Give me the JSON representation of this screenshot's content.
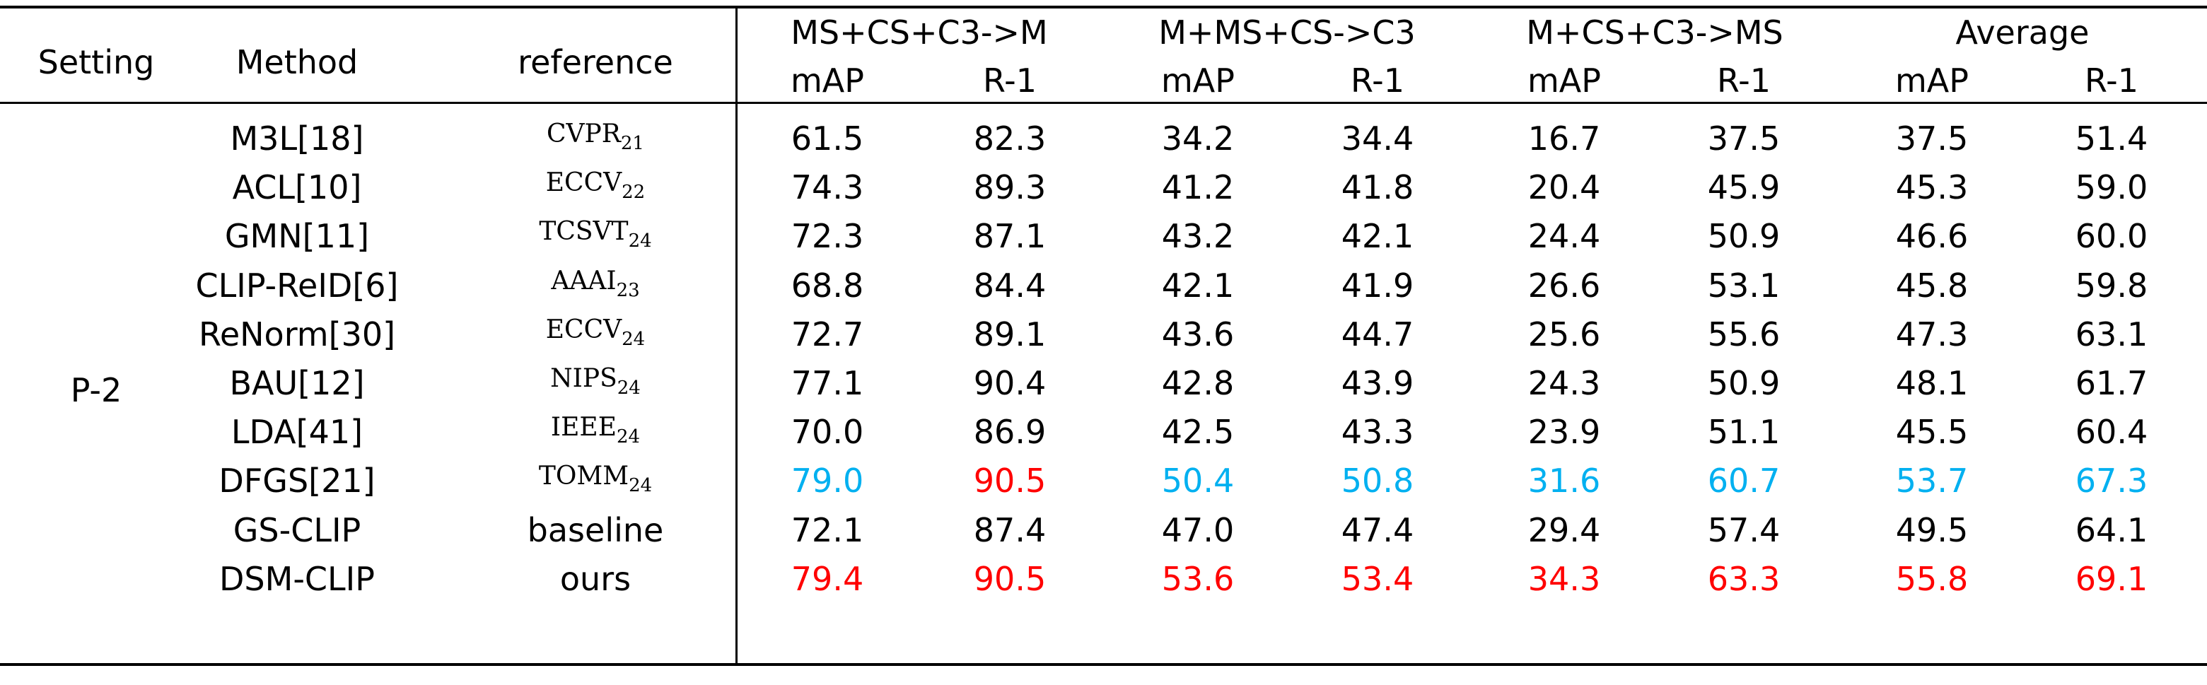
{
  "headers": {
    "setting": "Setting",
    "method": "Method",
    "reference": "reference",
    "groups": [
      "MS+CS+C3->M",
      "M+MS+CS->C3",
      "M+CS+C3->MS",
      "Average"
    ],
    "metrics": [
      "mAP",
      "R-1",
      "mAP",
      "R-1",
      "mAP",
      "R-1",
      "mAP",
      "R-1"
    ]
  },
  "setting_value": "P-2",
  "rows": [
    {
      "method": "M3L[18]",
      "ref": "CVPR",
      "ref_sub": "21",
      "values": [
        "61.5",
        "82.3",
        "34.2",
        "34.4",
        "16.7",
        "37.5",
        "37.5",
        "51.4"
      ],
      "colors": [
        "",
        "",
        "",
        "",
        "",
        "",
        "",
        ""
      ]
    },
    {
      "method": "ACL[10]",
      "ref": "ECCV",
      "ref_sub": "22",
      "values": [
        "74.3",
        "89.3",
        "41.2",
        "41.8",
        "20.4",
        "45.9",
        "45.3",
        "59.0"
      ],
      "colors": [
        "",
        "",
        "",
        "",
        "",
        "",
        "",
        ""
      ]
    },
    {
      "method": "GMN[11]",
      "ref": "TCSVT",
      "ref_sub": "24",
      "values": [
        "72.3",
        "87.1",
        "43.2",
        "42.1",
        "24.4",
        "50.9",
        "46.6",
        "60.0"
      ],
      "colors": [
        "",
        "",
        "",
        "",
        "",
        "",
        "",
        ""
      ]
    },
    {
      "method": "CLIP-ReID[6]",
      "ref": "AAAI",
      "ref_sub": "23",
      "values": [
        "68.8",
        "84.4",
        "42.1",
        "41.9",
        "26.6",
        "53.1",
        "45.8",
        "59.8"
      ],
      "colors": [
        "",
        "",
        "",
        "",
        "",
        "",
        "",
        ""
      ]
    },
    {
      "method": "ReNorm[30]",
      "ref": "ECCV",
      "ref_sub": "24",
      "values": [
        "72.7",
        "89.1",
        "43.6",
        "44.7",
        "25.6",
        "55.6",
        "47.3",
        "63.1"
      ],
      "colors": [
        "",
        "",
        "",
        "",
        "",
        "",
        "",
        ""
      ]
    },
    {
      "method": "BAU[12]",
      "ref": "NIPS",
      "ref_sub": "24",
      "values": [
        "77.1",
        "90.4",
        "42.8",
        "43.9",
        "24.3",
        "50.9",
        "48.1",
        "61.7"
      ],
      "colors": [
        "",
        "",
        "",
        "",
        "",
        "",
        "",
        ""
      ]
    },
    {
      "method": "LDA[41]",
      "ref": "IEEE",
      "ref_sub": "24",
      "values": [
        "70.0",
        "86.9",
        "42.5",
        "43.3",
        "23.9",
        "51.1",
        "45.5",
        "60.4"
      ],
      "colors": [
        "",
        "",
        "",
        "",
        "",
        "",
        "",
        ""
      ]
    },
    {
      "method": "DFGS[21]",
      "ref": "TOMM",
      "ref_sub": "24",
      "values": [
        "79.0",
        "90.5",
        "50.4",
        "50.8",
        "31.6",
        "60.7",
        "53.7",
        "67.3"
      ],
      "colors": [
        "blue",
        "red",
        "blue",
        "blue",
        "blue",
        "blue",
        "blue",
        "blue"
      ]
    },
    {
      "method": "GS-CLIP",
      "ref_plain": "baseline",
      "values": [
        "72.1",
        "87.4",
        "47.0",
        "47.4",
        "29.4",
        "57.4",
        "49.5",
        "64.1"
      ],
      "colors": [
        "",
        "",
        "",
        "",
        "",
        "",
        "",
        ""
      ]
    },
    {
      "method": "DSM-CLIP",
      "ref_plain": "ours",
      "values": [
        "79.4",
        "90.5",
        "53.6",
        "53.4",
        "34.3",
        "63.3",
        "55.8",
        "69.1"
      ],
      "colors": [
        "red",
        "red",
        "red",
        "red",
        "red",
        "red",
        "red",
        "red"
      ]
    }
  ],
  "colors": {
    "best": "#FF0000",
    "second": "#00B0F0",
    "text": "#000000"
  }
}
